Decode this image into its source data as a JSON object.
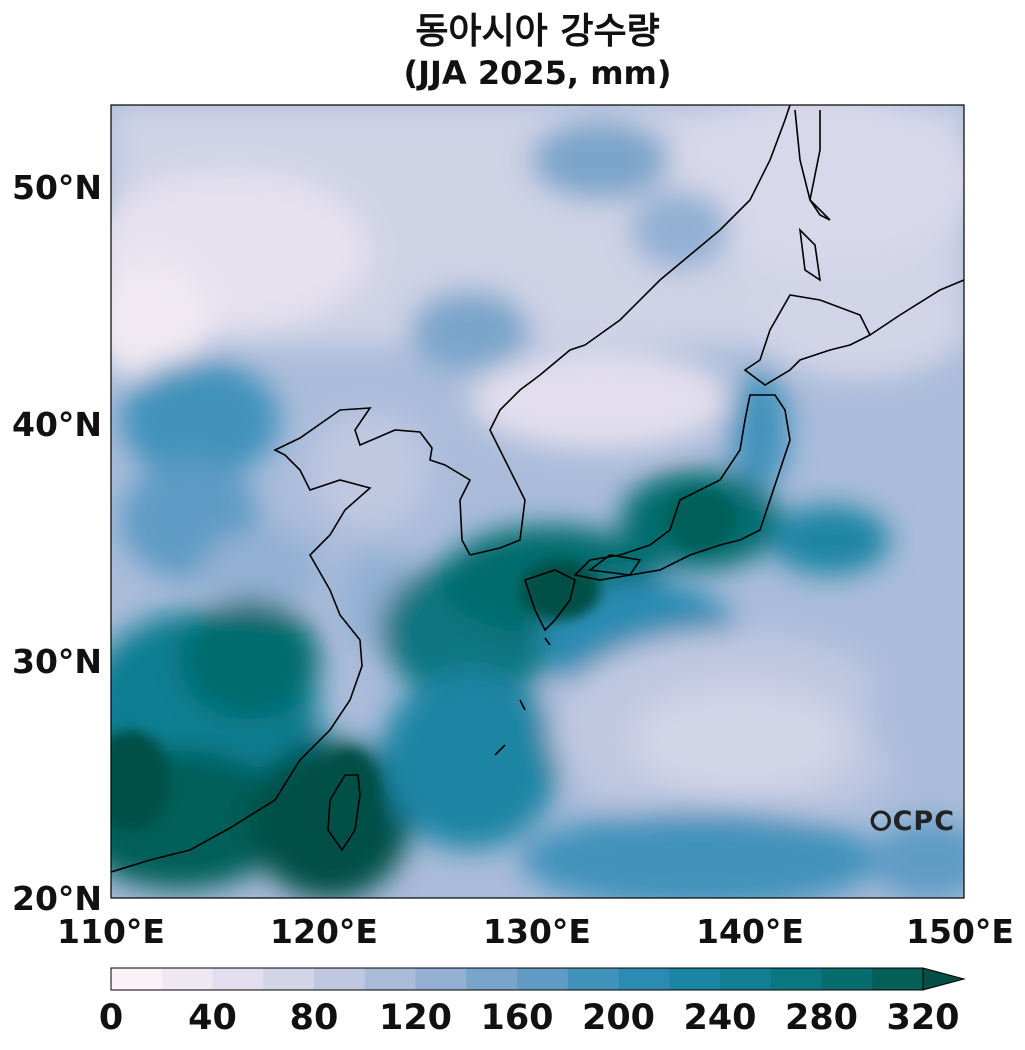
{
  "title": "동아시아 강수량",
  "subtitle": "(JJA 2025, mm)",
  "lat_labels": [
    "50°N",
    "40°N",
    "30°N",
    "20°N"
  ],
  "lon_labels": [
    "110°E",
    "120°E",
    "130°E",
    "140°E",
    "150°E"
  ],
  "colorbar": {
    "tick_labels": [
      "0",
      "40",
      "80",
      "120",
      "160",
      "200",
      "240",
      "280",
      "320"
    ],
    "min": 0,
    "max": 320,
    "step": 20,
    "extend": "max",
    "colors": [
      "#fbf2f7",
      "#efe8f2",
      "#e2deed",
      "#d2d4e7",
      "#c0c8e1",
      "#aabcda",
      "#93b0d3",
      "#7aa5cb",
      "#5f9bc4",
      "#4293bc",
      "#2b8bb2",
      "#1b85a4",
      "#117e93",
      "#0a7680",
      "#066c6d",
      "#055f59",
      "#034f46"
    ]
  },
  "extent": {
    "lon": [
      110,
      150
    ],
    "lat": [
      20,
      53.5
    ]
  },
  "watermark": "CPC"
}
